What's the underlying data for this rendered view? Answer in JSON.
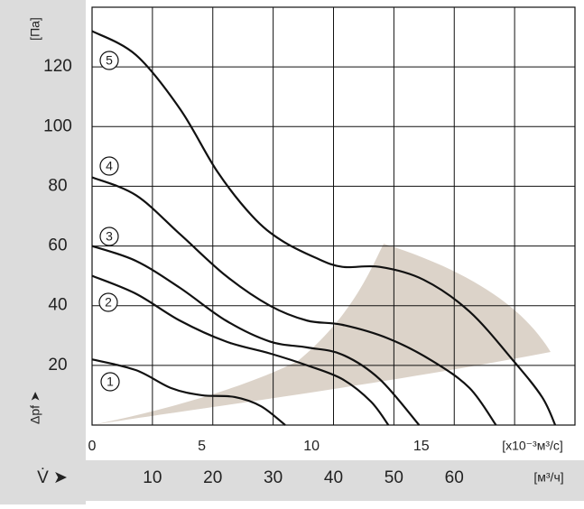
{
  "chart_data": {
    "type": "line",
    "y_label": "[Па]",
    "y_arrow_label": "Δpf ➤",
    "x_unit_label": "[x10⁻³м³/с]",
    "x2_arrow_label": "V̇ ➤",
    "x2_unit_label": "[м³/ч]",
    "xlim": [
      0,
      22
    ],
    "xticks": [
      0,
      5,
      10,
      15
    ],
    "x2lim": [
      0,
      80
    ],
    "x2ticks": [
      10,
      20,
      30,
      40,
      50,
      60
    ],
    "x2_grid_lines": [
      10,
      20,
      30,
      40,
      50,
      60,
      70
    ],
    "ylim": [
      0,
      140
    ],
    "yticks": [
      20,
      40,
      60,
      80,
      100,
      120
    ],
    "grid": true,
    "series": [
      {
        "name": "1",
        "color": "#111111",
        "x": [
          0,
          2,
          3.6,
          5,
          6.5,
          7.7,
          8.8
        ],
        "values": [
          22,
          18.4,
          12.4,
          10,
          9.4,
          6.3,
          0
        ]
      },
      {
        "name": "2",
        "color": "#111111",
        "x": [
          0,
          2,
          4,
          6.1,
          8.1,
          9.8,
          11.4,
          12.7,
          13.5
        ],
        "values": [
          50,
          44,
          35,
          28,
          24,
          20,
          15.4,
          7.9,
          0
        ]
      },
      {
        "name": "3",
        "color": "#111111",
        "x": [
          0,
          2,
          4,
          6.1,
          8.1,
          9.8,
          11.4,
          13.1,
          14.9
        ],
        "values": [
          60,
          55,
          46,
          35,
          28,
          26,
          23.6,
          15.4,
          0
        ]
      },
      {
        "name": "4",
        "color": "#111111",
        "x": [
          0,
          2,
          4,
          6.1,
          8.1,
          9.8,
          11.4,
          13.5,
          15.5,
          17.2,
          18.4
        ],
        "values": [
          83,
          77,
          64,
          50,
          40,
          35,
          33.6,
          29,
          21.5,
          12.4,
          0
        ]
      },
      {
        "name": "5",
        "color": "#111111",
        "x": [
          0,
          2,
          4,
          5.7,
          7.3,
          8.6,
          10.2,
          11.4,
          13.1,
          15.1,
          17.2,
          19.2,
          20.5,
          21.1
        ],
        "values": [
          132,
          124,
          106,
          85,
          70,
          62,
          56,
          53,
          53,
          48.7,
          38,
          21.5,
          9.4,
          0
        ]
      }
    ]
  }
}
